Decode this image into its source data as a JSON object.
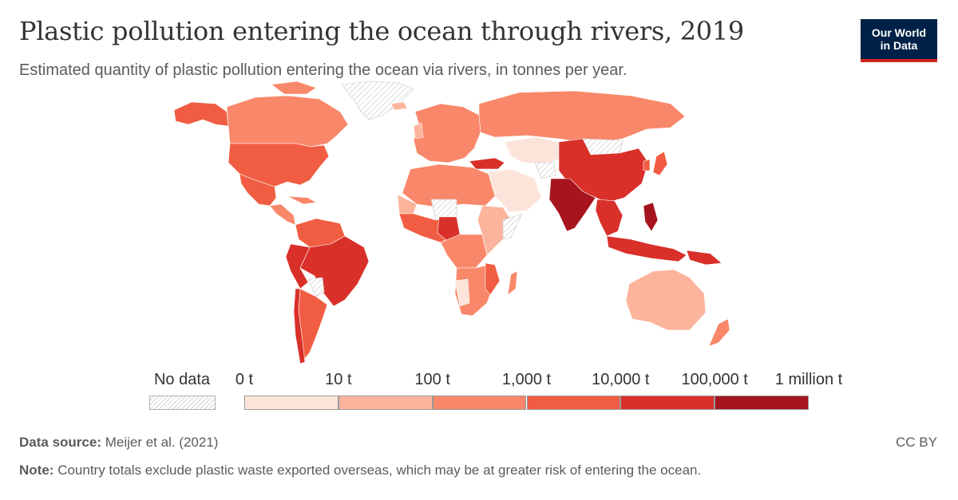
{
  "header": {
    "title": "Plastic pollution entering the ocean through rivers, 2019",
    "subtitle": "Estimated quantity of plastic pollution entering the ocean via rivers, in tonnes per year."
  },
  "logo": {
    "line1": "Our World",
    "line2": "in Data",
    "bg": "#002147",
    "accent": "#ce261e"
  },
  "legend": {
    "no_data_label": "No data",
    "ticks": [
      "0 t",
      "10 t",
      "100 t",
      "1,000 t",
      "10,000 t",
      "100,000 t",
      "1 million t"
    ],
    "colors": [
      "#fde4da",
      "#fcb59c",
      "#f9876a",
      "#f15d43",
      "#d9302a",
      "#a6151e"
    ]
  },
  "footer": {
    "source_label": "Data source:",
    "source_text": "Meijer et al. (2021)",
    "note_label": "Note:",
    "note_text": "Country totals exclude plastic waste exported overseas, which may be at greater risk of entering the ocean.",
    "license": "CC BY"
  }
}
